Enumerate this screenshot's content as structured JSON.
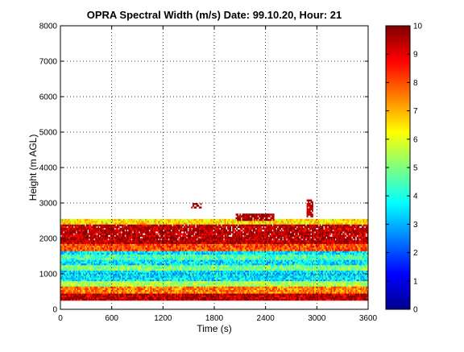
{
  "chart_data": {
    "type": "heatmap",
    "title": "OPRA Spectral Width (m/s)  Date: 99.10.20, Hour: 21",
    "xlabel": "Time (s)",
    "ylabel": "Height (m AGL)",
    "xlim": [
      0,
      3600
    ],
    "ylim": [
      0,
      8000
    ],
    "x_ticks": [
      "0",
      "600",
      "1200",
      "1800",
      "2400",
      "3000",
      "3600"
    ],
    "y_ticks": [
      "0",
      "1000",
      "2000",
      "3000",
      "4000",
      "5000",
      "6000",
      "7000",
      "8000"
    ],
    "grid": true,
    "colorbar": {
      "range": [
        0,
        10
      ],
      "ticks": [
        "0",
        "1",
        "2",
        "3",
        "4",
        "5",
        "6",
        "7",
        "8",
        "9",
        "10"
      ],
      "colormap": "jet"
    },
    "value_bands": [
      {
        "height_range": [
          250,
          450
        ],
        "value": 9.5
      },
      {
        "height_range": [
          450,
          650
        ],
        "value": 7.5
      },
      {
        "height_range": [
          650,
          800
        ],
        "value": 5.5
      },
      {
        "height_range": [
          800,
          1100
        ],
        "value": 3.5
      },
      {
        "height_range": [
          1100,
          1250
        ],
        "value": 5.0
      },
      {
        "height_range": [
          1250,
          1400
        ],
        "value": 3.5
      },
      {
        "height_range": [
          1400,
          1550
        ],
        "value": 4.5
      },
      {
        "height_range": [
          1550,
          1650
        ],
        "value": 3.5
      },
      {
        "height_range": [
          1650,
          1850
        ],
        "value": 8.0
      },
      {
        "height_range": [
          1850,
          2400
        ],
        "value": 9.5
      },
      {
        "height_range": [
          2400,
          2550
        ],
        "value": 6.5
      }
    ],
    "sparse_features": [
      {
        "time_range": [
          1530,
          1650
        ],
        "height_range": [
          2850,
          3000
        ],
        "value": 9.8
      },
      {
        "time_range": [
          2050,
          2500
        ],
        "height_range": [
          2500,
          2700
        ],
        "value": 9.6
      },
      {
        "time_range": [
          2880,
          2950
        ],
        "height_range": [
          2600,
          3100
        ],
        "value": 9.4
      }
    ]
  }
}
